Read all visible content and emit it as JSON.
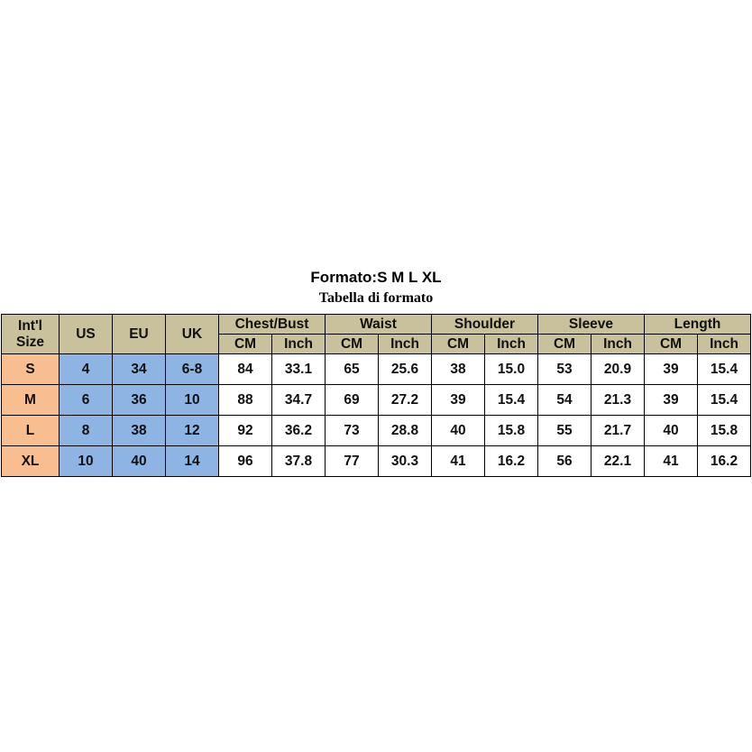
{
  "title": "Formato:S M L XL",
  "subtitle": "Tabella di formato",
  "colors": {
    "header": "#c8c19b",
    "size_column": "#f9be8f",
    "region_columns": "#8db4e3",
    "measurements": "#ffffff"
  },
  "headers": {
    "intl_line1": "Int'l",
    "intl_line2": "Size",
    "us": "US",
    "eu": "EU",
    "uk": "UK",
    "groups": [
      "Chest/Bust",
      "Waist",
      "Shoulder",
      "Sleeve",
      "Length"
    ],
    "cm": "CM",
    "inch": "Inch"
  },
  "rows": [
    {
      "size": "S",
      "us": "4",
      "eu": "34",
      "uk": "6-8",
      "m": [
        "84",
        "33.1",
        "65",
        "25.6",
        "38",
        "15.0",
        "53",
        "20.9",
        "39",
        "15.4"
      ]
    },
    {
      "size": "M",
      "us": "6",
      "eu": "36",
      "uk": "10",
      "m": [
        "88",
        "34.7",
        "69",
        "27.2",
        "39",
        "15.4",
        "54",
        "21.3",
        "39",
        "15.4"
      ]
    },
    {
      "size": "L",
      "us": "8",
      "eu": "38",
      "uk": "12",
      "m": [
        "92",
        "36.2",
        "73",
        "28.8",
        "40",
        "15.8",
        "55",
        "21.7",
        "40",
        "15.8"
      ]
    },
    {
      "size": "XL",
      "us": "10",
      "eu": "40",
      "uk": "14",
      "m": [
        "96",
        "37.8",
        "77",
        "30.3",
        "41",
        "16.2",
        "56",
        "22.1",
        "41",
        "16.2"
      ]
    }
  ]
}
